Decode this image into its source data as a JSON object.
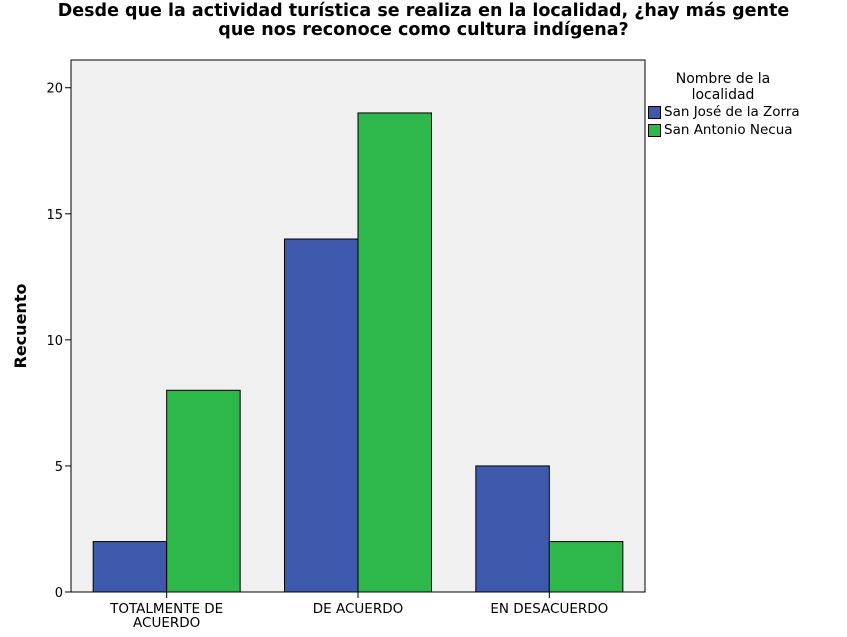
{
  "chart_data": {
    "type": "bar",
    "title_lines": [
      "Desde que la actividad turística se realiza en la localidad, ¿hay más gente",
      "que nos reconoce como cultura indígena?"
    ],
    "xlabel": "",
    "ylabel": "Recuento",
    "categories": [
      [
        "TOTALMENTE DE",
        "ACUERDO"
      ],
      [
        "DE ACUERDO"
      ],
      [
        "EN DESACUERDO"
      ]
    ],
    "series": [
      {
        "name": "San José de la Zorra",
        "values": [
          2,
          14,
          5
        ],
        "color": "#3e58ac"
      },
      {
        "name": "San Antonio Necua",
        "values": [
          8,
          19,
          2
        ],
        "color": "#2eb84c"
      }
    ],
    "yticks": [
      0,
      5,
      10,
      15,
      20
    ],
    "ylim": [
      0,
      21.1
    ],
    "grid": false,
    "legend": {
      "title_lines": [
        "Nombre de la",
        "localidad"
      ],
      "placement": "right"
    },
    "plot_background": "#f0f0f0"
  }
}
